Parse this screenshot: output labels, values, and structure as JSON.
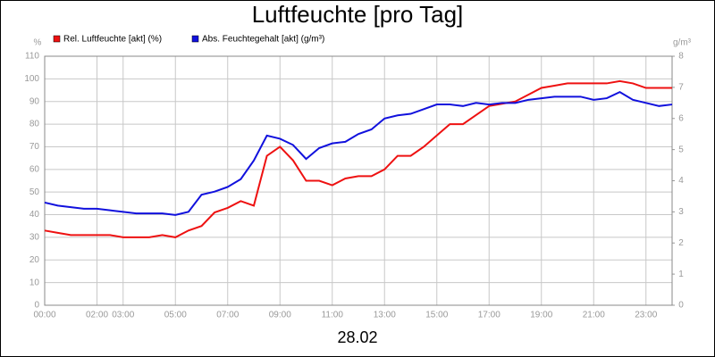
{
  "chart_data": {
    "type": "line",
    "title": "Luftfeuchte [pro Tag]",
    "xlabel": "28.02",
    "ylabel": "%",
    "y2label": "g/m³",
    "x": [
      0,
      0.5,
      1,
      1.5,
      2,
      2.5,
      3,
      3.5,
      4,
      4.5,
      5,
      5.5,
      6,
      6.5,
      7,
      7.5,
      8,
      8.5,
      9,
      9.5,
      10,
      10.5,
      11,
      11.5,
      12,
      12.5,
      13,
      13.5,
      14,
      14.5,
      15,
      15.5,
      16,
      16.5,
      17,
      17.5,
      18,
      18.5,
      19,
      19.5,
      20,
      20.5,
      21,
      21.5,
      22,
      22.5,
      23,
      23.5,
      24
    ],
    "series": [
      {
        "name": "Rel. Luftfeuchte [akt] (%)",
        "color": "#ee1111",
        "values": [
          33,
          32,
          31,
          31,
          31,
          31,
          30,
          30,
          30,
          31,
          30,
          33,
          35,
          41,
          43,
          46,
          44,
          66,
          70,
          64,
          55,
          55,
          53,
          56,
          57,
          57,
          60,
          66,
          66,
          70,
          75,
          80,
          80,
          84,
          88,
          89,
          90,
          93,
          96,
          97,
          98,
          98,
          98,
          98,
          99,
          98,
          96,
          96,
          96
        ]
      },
      {
        "name": "Abs. Feuchtegehalt [akt] (g/m³)",
        "color": "#1111dd",
        "axis": "y2",
        "values": [
          3.3,
          3.2,
          3.15,
          3.1,
          3.1,
          3.05,
          3.0,
          2.95,
          2.95,
          2.95,
          2.9,
          3.0,
          3.55,
          3.65,
          3.8,
          4.05,
          4.65,
          5.45,
          5.35,
          5.15,
          4.7,
          5.05,
          5.2,
          5.25,
          5.5,
          5.65,
          6.0,
          6.1,
          6.15,
          6.3,
          6.45,
          6.45,
          6.4,
          6.5,
          6.45,
          6.5,
          6.5,
          6.6,
          6.65,
          6.7,
          6.7,
          6.7,
          6.6,
          6.65,
          6.85,
          6.6,
          6.5,
          6.4,
          6.45
        ]
      }
    ],
    "xlim": [
      0,
      24
    ],
    "xticks": [
      {
        "value": 0,
        "label": "00:00"
      },
      {
        "value": 2,
        "label": "02:00"
      },
      {
        "value": 3,
        "label": "03:00"
      },
      {
        "value": 5,
        "label": "05:00"
      },
      {
        "value": 7,
        "label": "07:00"
      },
      {
        "value": 9,
        "label": "09:00"
      },
      {
        "value": 11,
        "label": "11:00"
      },
      {
        "value": 13,
        "label": "13:00"
      },
      {
        "value": 15,
        "label": "15:00"
      },
      {
        "value": 17,
        "label": "17:00"
      },
      {
        "value": 19,
        "label": "19:00"
      },
      {
        "value": 21,
        "label": "21:00"
      },
      {
        "value": 23,
        "label": "23:00"
      }
    ],
    "ylim": [
      0,
      110
    ],
    "yticks": [
      0,
      10,
      20,
      30,
      40,
      50,
      60,
      70,
      80,
      90,
      100,
      110
    ],
    "y2lim": [
      0,
      8
    ],
    "y2ticks": [
      0,
      1,
      2,
      3,
      4,
      5,
      6,
      7,
      8
    ],
    "grid": true
  }
}
